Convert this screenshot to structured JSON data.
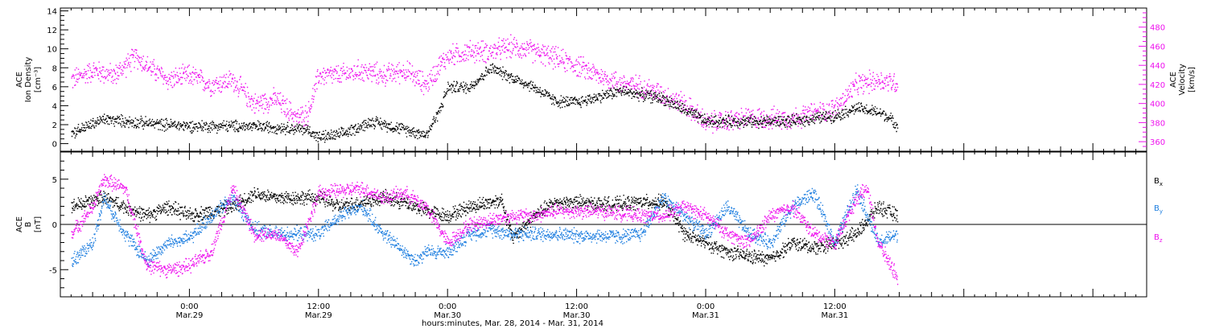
{
  "chart_data": [
    {
      "type": "scatter",
      "panel": "top",
      "left_axis": {
        "label_lines": [
          "ACE",
          "Ion Density",
          "[cm⁻³]"
        ],
        "ylim": [
          -0.8,
          14.3
        ],
        "ticks": [
          0,
          2,
          4,
          6,
          8,
          10,
          12,
          14
        ],
        "color": "#000000"
      },
      "right_axis": {
        "label_lines": [
          "ACE",
          "Velocity",
          "[km/s]"
        ],
        "ylim": [
          350,
          500
        ],
        "ticks": [
          360,
          380,
          400,
          420,
          440,
          460,
          480
        ],
        "color": "#ee11ee"
      },
      "series": [
        {
          "axis": "left",
          "color": "#000000",
          "points": [
            [
              -11,
              1.2
            ],
            [
              -8,
              2.6
            ],
            [
              -4,
              2.2
            ],
            [
              0,
              1.9
            ],
            [
              4,
              1.9
            ],
            [
              8,
              1.8
            ],
            [
              11,
              1.5
            ],
            [
              12,
              0.7
            ],
            [
              14,
              1.0
            ],
            [
              17,
              2.4
            ],
            [
              19,
              1.8
            ],
            [
              22,
              1.0
            ],
            [
              23.2,
              3.5
            ],
            [
              24,
              6
            ],
            [
              26,
              6
            ],
            [
              28,
              8
            ],
            [
              30,
              7
            ],
            [
              32,
              6
            ],
            [
              34,
              4.5
            ],
            [
              36,
              4.4
            ],
            [
              38,
              5
            ],
            [
              40,
              5.6
            ],
            [
              42,
              5.2
            ],
            [
              44,
              4.8
            ],
            [
              46,
              3.6
            ],
            [
              48,
              2.4
            ],
            [
              52,
              2.4
            ],
            [
              56,
              2.4
            ],
            [
              60,
              3.0
            ],
            [
              62,
              3.8
            ],
            [
              64.5,
              3.2
            ],
            [
              65.8,
              2.0
            ]
          ]
        },
        {
          "axis": "right",
          "color": "#ee11ee",
          "points": [
            [
              -11,
              425
            ],
            [
              -9,
              435
            ],
            [
              -7,
              430
            ],
            [
              -5,
              450
            ],
            [
              -4,
              440
            ],
            [
              -2,
              425
            ],
            [
              0,
              430
            ],
            [
              2,
              420
            ],
            [
              4,
              425
            ],
            [
              6,
              400
            ],
            [
              8,
              405
            ],
            [
              10,
              385
            ],
            [
              11,
              390
            ],
            [
              12,
              430
            ],
            [
              14,
              430
            ],
            [
              16,
              435
            ],
            [
              18,
              430
            ],
            [
              20,
              435
            ],
            [
              22,
              420
            ],
            [
              23.2,
              440
            ],
            [
              24,
              450
            ],
            [
              26,
              455
            ],
            [
              28,
              455
            ],
            [
              30,
              460
            ],
            [
              32,
              455
            ],
            [
              34,
              448
            ],
            [
              36,
              440
            ],
            [
              38,
              430
            ],
            [
              40,
              422
            ],
            [
              42,
              418
            ],
            [
              44,
              410
            ],
            [
              46,
              400
            ],
            [
              48,
              380
            ],
            [
              52,
              385
            ],
            [
              56,
              385
            ],
            [
              60,
              395
            ],
            [
              62,
              420
            ],
            [
              64,
              425
            ],
            [
              65.8,
              422
            ]
          ]
        }
      ]
    },
    {
      "type": "scatter",
      "panel": "bottom",
      "left_axis": {
        "label_lines": [
          "ACE",
          "B",
          "[nT]"
        ],
        "ylim": [
          -8,
          8
        ],
        "ticks": [
          -5,
          0,
          5
        ]
      },
      "legend_placement": "right",
      "series": [
        {
          "name": "Bx",
          "color": "#000000",
          "points": [
            [
              -11,
              2
            ],
            [
              -8,
              3
            ],
            [
              -6,
              2
            ],
            [
              -4,
              1
            ],
            [
              -2,
              2
            ],
            [
              0,
              1
            ],
            [
              2,
              1.5
            ],
            [
              4,
              2
            ],
            [
              6,
              3.5
            ],
            [
              8,
              3
            ],
            [
              10,
              3
            ],
            [
              12,
              3
            ],
            [
              14,
              2
            ],
            [
              16,
              2.5
            ],
            [
              18,
              3
            ],
            [
              20,
              2.5
            ],
            [
              22,
              1.5
            ],
            [
              24,
              1
            ],
            [
              26,
              2
            ],
            [
              28,
              2.5
            ],
            [
              29,
              2.8
            ],
            [
              30,
              -1.5
            ],
            [
              32,
              1
            ],
            [
              34,
              2.5
            ],
            [
              36,
              2.5
            ],
            [
              38,
              2.3
            ],
            [
              40,
              2.3
            ],
            [
              42,
              2.5
            ],
            [
              44,
              2.5
            ],
            [
              45,
              1
            ],
            [
              46,
              -1
            ],
            [
              48,
              -2
            ],
            [
              50,
              -3
            ],
            [
              52,
              -3.5
            ],
            [
              54,
              -3.8
            ],
            [
              56,
              -2
            ],
            [
              58,
              -2.5
            ],
            [
              60,
              -2
            ],
            [
              62,
              -1
            ],
            [
              64,
              2
            ],
            [
              65.8,
              1
            ]
          ]
        },
        {
          "name": "By",
          "color": "#1f7fe0",
          "points": [
            [
              -11,
              -4
            ],
            [
              -9,
              -2
            ],
            [
              -8,
              3
            ],
            [
              -6,
              -1
            ],
            [
              -4,
              -4
            ],
            [
              -2,
              -2
            ],
            [
              0,
              -1.5
            ],
            [
              2,
              1
            ],
            [
              4,
              3
            ],
            [
              6,
              -0.5
            ],
            [
              8,
              -1
            ],
            [
              10,
              -1
            ],
            [
              12,
              -1
            ],
            [
              14,
              1
            ],
            [
              16,
              2
            ],
            [
              18,
              -1
            ],
            [
              20,
              -3
            ],
            [
              21,
              -4
            ],
            [
              22,
              -3
            ],
            [
              24,
              -3
            ],
            [
              26,
              -1
            ],
            [
              28,
              -0.5
            ],
            [
              30,
              -1
            ],
            [
              32,
              -1
            ],
            [
              34,
              -1
            ],
            [
              36,
              -1.2
            ],
            [
              38,
              -1.2
            ],
            [
              40,
              -1.3
            ],
            [
              42,
              -1
            ],
            [
              44,
              3
            ],
            [
              46,
              1
            ],
            [
              48,
              -1
            ],
            [
              50,
              2
            ],
            [
              52,
              -1
            ],
            [
              54,
              -2
            ],
            [
              56,
              2
            ],
            [
              58,
              3.5
            ],
            [
              60,
              -2
            ],
            [
              62,
              4
            ],
            [
              64,
              -2
            ],
            [
              65.8,
              -1
            ]
          ]
        },
        {
          "name": "Bz",
          "color": "#ee11ee",
          "points": [
            [
              -11,
              -1
            ],
            [
              -9,
              2
            ],
            [
              -8,
              5
            ],
            [
              -6,
              4
            ],
            [
              -4,
              -4.5
            ],
            [
              -2,
              -5
            ],
            [
              0,
              -4.5
            ],
            [
              2,
              -3
            ],
            [
              4,
              4
            ],
            [
              6,
              -1
            ],
            [
              8,
              -1
            ],
            [
              10,
              -3
            ],
            [
              12,
              3.5
            ],
            [
              14,
              3.8
            ],
            [
              16,
              4
            ],
            [
              18,
              3
            ],
            [
              20,
              3.5
            ],
            [
              22,
              2
            ],
            [
              24,
              -2
            ],
            [
              26,
              0
            ],
            [
              28,
              0.5
            ],
            [
              30,
              1
            ],
            [
              32,
              1
            ],
            [
              34,
              1.5
            ],
            [
              36,
              1.5
            ],
            [
              38,
              1.5
            ],
            [
              40,
              1.3
            ],
            [
              42,
              1
            ],
            [
              44,
              1
            ],
            [
              46,
              2
            ],
            [
              48,
              1
            ],
            [
              50,
              -1
            ],
            [
              52,
              -2
            ],
            [
              54,
              1
            ],
            [
              56,
              2
            ],
            [
              58,
              -1
            ],
            [
              60,
              -2
            ],
            [
              62,
              3
            ],
            [
              63,
              4
            ],
            [
              64,
              -2
            ],
            [
              65.8,
              -5.8
            ]
          ]
        }
      ]
    }
  ],
  "legend": {
    "bx": {
      "base": "B",
      "sub": "x"
    },
    "by": {
      "base": "B",
      "sub": "y"
    },
    "bz": {
      "base": "B",
      "sub": "z"
    }
  },
  "x_axis": {
    "xlim": [
      -12,
      89
    ],
    "unit": "hours since 2014-03-29 00:00",
    "major_ticks": [
      {
        "x": 0,
        "time": "0:00",
        "date": "Mar.29"
      },
      {
        "x": 12,
        "time": "12:00",
        "date": "Mar.29"
      },
      {
        "x": 24,
        "time": "0:00",
        "date": "Mar.30"
      },
      {
        "x": 36,
        "time": "12:00",
        "date": "Mar.30"
      },
      {
        "x": 48,
        "time": "0:00",
        "date": "Mar.31"
      },
      {
        "x": 60,
        "time": "12:00",
        "date": "Mar.31"
      }
    ],
    "title": "hours:minutes, Mar. 28, 2014 - Mar. 31, 2014"
  }
}
